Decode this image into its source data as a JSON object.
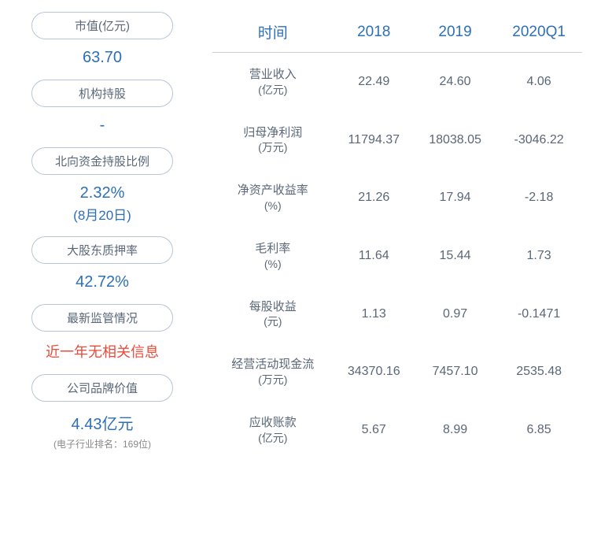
{
  "left_stats": [
    {
      "label": "市值(亿元)",
      "value": "63.70",
      "value_color": "#2d6fb8"
    },
    {
      "label": "机构持股",
      "value": "-",
      "value_color": "#2d6fb8"
    },
    {
      "label": "北向资金持股比例",
      "value": "2.32%",
      "sub": "(8月20日)",
      "value_color": "#2d6fb8"
    },
    {
      "label": "大股东质押率",
      "value": "42.72%",
      "value_color": "#2d6fb8"
    },
    {
      "label": "最新监管情况",
      "value": "近一年无相关信息",
      "value_color": "#e74c3c"
    },
    {
      "label": "公司品牌价值",
      "value": "4.43亿元",
      "sub_gray": "(电子行业排名：169位)",
      "value_color": "#2d6fb8"
    }
  ],
  "table": {
    "header_color": "#2d6fb8",
    "cell_color": "#5a6778",
    "border_color": "#d0d0d0",
    "columns": [
      "时间",
      "2018",
      "2019",
      "2020Q1"
    ],
    "rows": [
      {
        "metric": "营业收入",
        "unit": "(亿元)",
        "values": [
          "22.49",
          "24.60",
          "4.06"
        ]
      },
      {
        "metric": "归母净利润",
        "unit": "(万元)",
        "values": [
          "11794.37",
          "18038.05",
          "-3046.22"
        ]
      },
      {
        "metric": "净资产收益率",
        "unit": "(%)",
        "values": [
          "21.26",
          "17.94",
          "-2.18"
        ]
      },
      {
        "metric": "毛利率",
        "unit": "(%)",
        "values": [
          "11.64",
          "15.44",
          "1.73"
        ]
      },
      {
        "metric": "每股收益",
        "unit": "(元)",
        "values": [
          "1.13",
          "0.97",
          "-0.1471"
        ]
      },
      {
        "metric": "经营活动现金流",
        "unit": "(万元)",
        "values": [
          "34370.16",
          "7457.10",
          "2535.48"
        ]
      },
      {
        "metric": "应收账款",
        "unit": "(亿元)",
        "values": [
          "5.67",
          "8.99",
          "6.85"
        ]
      }
    ]
  }
}
